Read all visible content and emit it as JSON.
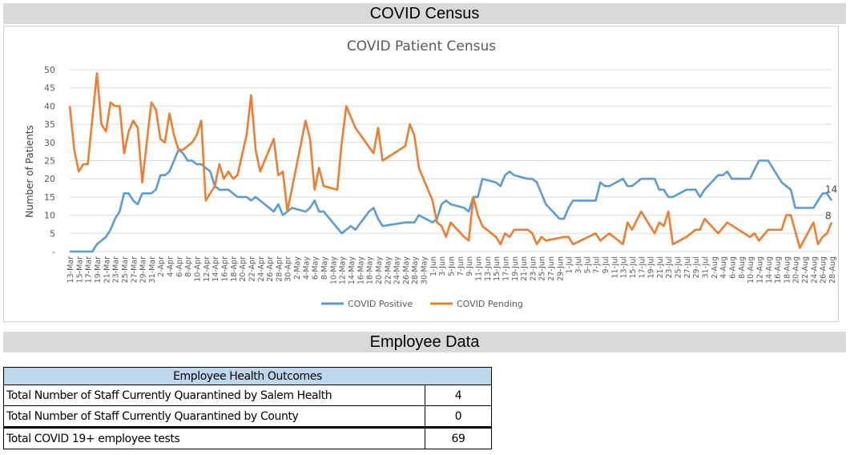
{
  "sections": {
    "census_title": "COVID Census",
    "employee_title": "Employee Data"
  },
  "chart_data": {
    "type": "line",
    "title": "COVID Patient Census",
    "xlabel": "",
    "ylabel": "Number of Patients",
    "ylim": [
      0,
      50
    ],
    "yticks": [
      "-",
      "5",
      "10",
      "15",
      "20",
      "25",
      "30",
      "35",
      "40",
      "45",
      "50"
    ],
    "grid": true,
    "legend": "bottom",
    "xticks": [
      "13-Mar",
      "15-Mar",
      "17-Mar",
      "19-Mar",
      "21-Mar",
      "23-Mar",
      "25-Mar",
      "27-Mar",
      "29-Mar",
      "31-Mar",
      "2-Apr",
      "4-Apr",
      "6-Apr",
      "8-Apr",
      "10-Apr",
      "12-Apr",
      "14-Apr",
      "16-Apr",
      "18-Apr",
      "20-Apr",
      "22-Apr",
      "24-Apr",
      "26-Apr",
      "28-Apr",
      "30-Apr",
      "2-May",
      "4-May",
      "6-May",
      "8-May",
      "10-May",
      "12-May",
      "14-May",
      "16-May",
      "18-May",
      "20-May",
      "22-May",
      "24-May",
      "26-May",
      "28-May",
      "30-May",
      "1-Jun",
      "3-Jun",
      "5-Jun",
      "7-Jun",
      "9-Jun",
      "11-Jun",
      "13-Jun",
      "15-Jun",
      "17-Jun",
      "19-Jun",
      "21-Jun",
      "23-Jun",
      "25-Jun",
      "27-Jun",
      "29-Jun",
      "1-Jul",
      "3-Jul",
      "5-Jul",
      "7-Jul",
      "9-Jul",
      "11-Jul",
      "13-Jul",
      "15-Jul",
      "17-Jul",
      "19-Jul",
      "21-Jul",
      "23-Jul",
      "25-Jul",
      "27-Jul",
      "29-Jul",
      "31-Jul",
      "2-Aug",
      "4-Aug",
      "6-Aug",
      "8-Aug",
      "10-Aug",
      "12-Aug",
      "14-Aug",
      "16-Aug",
      "18-Aug",
      "20-Aug",
      "22-Aug",
      "24-Aug",
      "26-Aug",
      "28-Aug"
    ],
    "series": [
      {
        "name": "COVID Positive",
        "color": "#5b9bd5",
        "end_label": "14",
        "points": [
          [
            "13-Mar",
            0
          ],
          [
            "18-Mar",
            0
          ],
          [
            "19-Mar",
            2
          ],
          [
            "21-Mar",
            4
          ],
          [
            "22-Mar",
            6
          ],
          [
            "23-Mar",
            9
          ],
          [
            "24-Mar",
            11
          ],
          [
            "25-Mar",
            16
          ],
          [
            "26-Mar",
            16
          ],
          [
            "27-Mar",
            14
          ],
          [
            "28-Mar",
            13
          ],
          [
            "29-Mar",
            16
          ],
          [
            "31-Mar",
            16
          ],
          [
            "1-Apr",
            17
          ],
          [
            "2-Apr",
            21
          ],
          [
            "3-Apr",
            21
          ],
          [
            "4-Apr",
            22
          ],
          [
            "5-Apr",
            25
          ],
          [
            "6-Apr",
            28
          ],
          [
            "7-Apr",
            27
          ],
          [
            "8-Apr",
            25
          ],
          [
            "9-Apr",
            25
          ],
          [
            "10-Apr",
            24
          ],
          [
            "11-Apr",
            24
          ],
          [
            "12-Apr",
            23
          ],
          [
            "13-Apr",
            22
          ],
          [
            "14-Apr",
            18
          ],
          [
            "15-Apr",
            17
          ],
          [
            "17-Apr",
            17
          ],
          [
            "19-Apr",
            15
          ],
          [
            "21-Apr",
            15
          ],
          [
            "22-Apr",
            14
          ],
          [
            "23-Apr",
            15
          ],
          [
            "27-Apr",
            11
          ],
          [
            "28-Apr",
            13
          ],
          [
            "29-Apr",
            10
          ],
          [
            "30-Apr",
            11
          ],
          [
            "1-May",
            12
          ],
          [
            "4-May",
            11
          ],
          [
            "5-May",
            12
          ],
          [
            "6-May",
            14
          ],
          [
            "7-May",
            11
          ],
          [
            "8-May",
            11
          ],
          [
            "12-May",
            5
          ],
          [
            "14-May",
            7
          ],
          [
            "15-May",
            6
          ],
          [
            "18-May",
            11
          ],
          [
            "19-May",
            12
          ],
          [
            "20-May",
            9
          ],
          [
            "21-May",
            7
          ],
          [
            "26-May",
            8
          ],
          [
            "28-May",
            8
          ],
          [
            "29-May",
            10
          ],
          [
            "1-Jun",
            8
          ],
          [
            "2-Jun",
            9
          ],
          [
            "3-Jun",
            13
          ],
          [
            "4-Jun",
            14
          ],
          [
            "5-Jun",
            13
          ],
          [
            "8-Jun",
            12
          ],
          [
            "9-Jun",
            11
          ],
          [
            "10-Jun",
            15
          ],
          [
            "11-Jun",
            15
          ],
          [
            "12-Jun",
            20
          ],
          [
            "15-Jun",
            19
          ],
          [
            "16-Jun",
            18
          ],
          [
            "17-Jun",
            21
          ],
          [
            "18-Jun",
            22
          ],
          [
            "19-Jun",
            21
          ],
          [
            "22-Jun",
            20
          ],
          [
            "23-Jun",
            20
          ],
          [
            "24-Jun",
            19
          ],
          [
            "26-Jun",
            13
          ],
          [
            "29-Jun",
            9
          ],
          [
            "30-Jun",
            9
          ],
          [
            "1-Jul",
            12
          ],
          [
            "2-Jul",
            14
          ],
          [
            "7-Jul",
            14
          ],
          [
            "8-Jul",
            19
          ],
          [
            "9-Jul",
            18
          ],
          [
            "10-Jul",
            18
          ],
          [
            "13-Jul",
            20
          ],
          [
            "14-Jul",
            18
          ],
          [
            "15-Jul",
            18
          ],
          [
            "17-Jul",
            20
          ],
          [
            "20-Jul",
            20
          ],
          [
            "21-Jul",
            17
          ],
          [
            "22-Jul",
            17
          ],
          [
            "23-Jul",
            15
          ],
          [
            "24-Jul",
            15
          ],
          [
            "27-Jul",
            17
          ],
          [
            "29-Jul",
            17
          ],
          [
            "30-Jul",
            15
          ],
          [
            "31-Jul",
            17
          ],
          [
            "3-Aug",
            21
          ],
          [
            "4-Aug",
            21
          ],
          [
            "5-Aug",
            22
          ],
          [
            "6-Aug",
            20
          ],
          [
            "10-Aug",
            20
          ],
          [
            "12-Aug",
            25
          ],
          [
            "14-Aug",
            25
          ],
          [
            "17-Aug",
            19
          ],
          [
            "19-Aug",
            17
          ],
          [
            "20-Aug",
            12
          ],
          [
            "24-Aug",
            12
          ],
          [
            "26-Aug",
            16
          ],
          [
            "27-Aug",
            16
          ],
          [
            "28-Aug",
            14
          ]
        ]
      },
      {
        "name": "COVID Pending",
        "color": "#ed7d31",
        "end_label": "8",
        "points": [
          [
            "13-Mar",
            40
          ],
          [
            "14-Mar",
            28
          ],
          [
            "15-Mar",
            22
          ],
          [
            "16-Mar",
            24
          ],
          [
            "17-Mar",
            24
          ],
          [
            "19-Mar",
            49
          ],
          [
            "20-Mar",
            35
          ],
          [
            "21-Mar",
            33
          ],
          [
            "22-Mar",
            41
          ],
          [
            "23-Mar",
            40
          ],
          [
            "24-Mar",
            40
          ],
          [
            "25-Mar",
            27
          ],
          [
            "26-Mar",
            33
          ],
          [
            "27-Mar",
            36
          ],
          [
            "28-Mar",
            34
          ],
          [
            "29-Mar",
            19
          ],
          [
            "31-Mar",
            41
          ],
          [
            "1-Apr",
            39
          ],
          [
            "2-Apr",
            31
          ],
          [
            "3-Apr",
            30
          ],
          [
            "4-Apr",
            38
          ],
          [
            "5-Apr",
            32
          ],
          [
            "6-Apr",
            28
          ],
          [
            "7-Apr",
            28
          ],
          [
            "9-Apr",
            30
          ],
          [
            "10-Apr",
            32
          ],
          [
            "11-Apr",
            36
          ],
          [
            "12-Apr",
            14
          ],
          [
            "14-Apr",
            18
          ],
          [
            "15-Apr",
            24
          ],
          [
            "16-Apr",
            20
          ],
          [
            "17-Apr",
            22
          ],
          [
            "18-Apr",
            20
          ],
          [
            "19-Apr",
            21
          ],
          [
            "21-Apr",
            32
          ],
          [
            "22-Apr",
            43
          ],
          [
            "23-Apr",
            28
          ],
          [
            "24-Apr",
            22
          ],
          [
            "27-Apr",
            31
          ],
          [
            "28-Apr",
            21
          ],
          [
            "29-Apr",
            22
          ],
          [
            "30-Apr",
            11
          ],
          [
            "4-May",
            36
          ],
          [
            "5-May",
            31
          ],
          [
            "6-May",
            17
          ],
          [
            "7-May",
            23
          ],
          [
            "8-May",
            18
          ],
          [
            "11-May",
            17
          ],
          [
            "12-May",
            30
          ],
          [
            "13-May",
            40
          ],
          [
            "15-May",
            34
          ],
          [
            "19-May",
            27
          ],
          [
            "20-May",
            34
          ],
          [
            "21-May",
            25
          ],
          [
            "26-May",
            29
          ],
          [
            "27-May",
            35
          ],
          [
            "28-May",
            32
          ],
          [
            "29-May",
            23
          ],
          [
            "1-Jun",
            14
          ],
          [
            "2-Jun",
            8
          ],
          [
            "3-Jun",
            7
          ],
          [
            "4-Jun",
            4
          ],
          [
            "5-Jun",
            8
          ],
          [
            "8-Jun",
            4
          ],
          [
            "9-Jun",
            3
          ],
          [
            "10-Jun",
            15
          ],
          [
            "11-Jun",
            10
          ],
          [
            "12-Jun",
            7
          ],
          [
            "15-Jun",
            4
          ],
          [
            "16-Jun",
            2
          ],
          [
            "17-Jun",
            5
          ],
          [
            "18-Jun",
            4
          ],
          [
            "19-Jun",
            6
          ],
          [
            "22-Jun",
            6
          ],
          [
            "23-Jun",
            5
          ],
          [
            "24-Jun",
            2
          ],
          [
            "25-Jun",
            4
          ],
          [
            "26-Jun",
            3
          ],
          [
            "30-Jun",
            4
          ],
          [
            "1-Jul",
            4
          ],
          [
            "2-Jul",
            2
          ],
          [
            "7-Jul",
            5
          ],
          [
            "8-Jul",
            3
          ],
          [
            "10-Jul",
            5
          ],
          [
            "13-Jul",
            2
          ],
          [
            "14-Jul",
            8
          ],
          [
            "15-Jul",
            6
          ],
          [
            "17-Jul",
            11
          ],
          [
            "20-Jul",
            5
          ],
          [
            "21-Jul",
            8
          ],
          [
            "22-Jul",
            7
          ],
          [
            "23-Jul",
            11
          ],
          [
            "24-Jul",
            2
          ],
          [
            "27-Jul",
            4
          ],
          [
            "29-Jul",
            6
          ],
          [
            "30-Jul",
            6
          ],
          [
            "31-Jul",
            9
          ],
          [
            "3-Aug",
            5
          ],
          [
            "5-Aug",
            8
          ],
          [
            "10-Aug",
            4
          ],
          [
            "11-Aug",
            5
          ],
          [
            "12-Aug",
            3
          ],
          [
            "14-Aug",
            6
          ],
          [
            "17-Aug",
            6
          ],
          [
            "18-Aug",
            10
          ],
          [
            "19-Aug",
            10
          ],
          [
            "21-Aug",
            1
          ],
          [
            "24-Aug",
            8
          ],
          [
            "25-Aug",
            2
          ],
          [
            "26-Aug",
            4
          ],
          [
            "27-Aug",
            5
          ],
          [
            "28-Aug",
            8
          ]
        ]
      }
    ]
  },
  "employee_table": {
    "header": "Employee Health Outcomes",
    "rows": [
      {
        "label": "Total Number of Staff Currently Quarantined by Salem Health",
        "value": "4"
      },
      {
        "label": "Total Number of Staff Currently Quarantined by County",
        "value": "0"
      },
      {
        "label": "Total COVID 19+ employee tests",
        "value": "69"
      }
    ]
  }
}
